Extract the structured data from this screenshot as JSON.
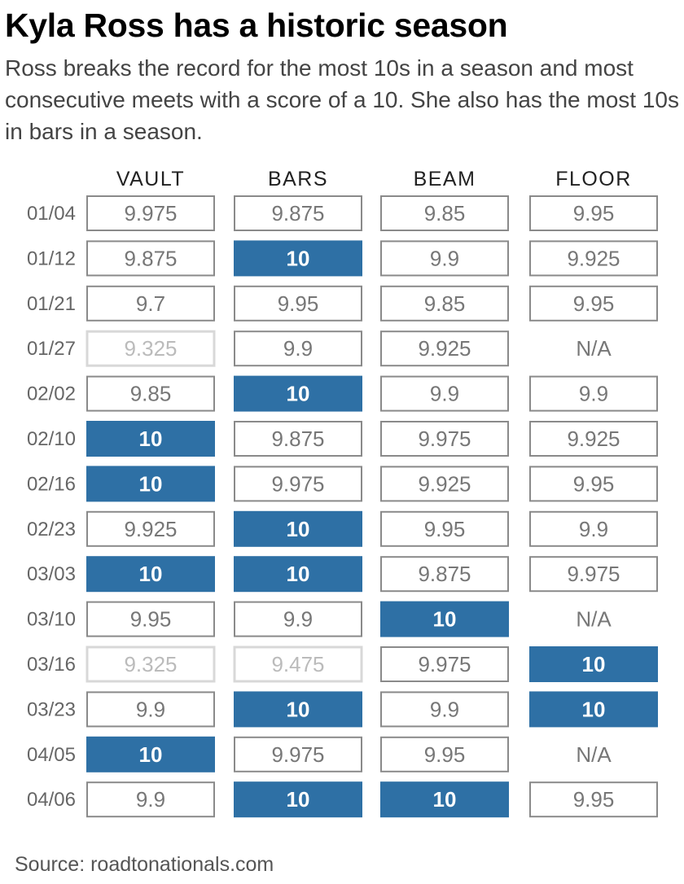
{
  "title": "Kyla Ross has a historic season",
  "subtitle": "Ross breaks the record for the most 10s in a season and most consecutive meets with a score of a 10. She also has the most 10s in bars in a season.",
  "source": "Source: roadtonationals.com",
  "colors": {
    "highlight_fill": "#2e70a5",
    "highlight_text": "#ffffff",
    "cell_border": "#8a8a8a",
    "cell_text": "#777777",
    "faded_border": "#d8d8d8",
    "faded_text": "#bbbbbb",
    "date_text": "#666666",
    "header_text": "#222222"
  },
  "chart_data": {
    "type": "table",
    "columns": [
      "VAULT",
      "BARS",
      "BEAM",
      "FLOOR"
    ],
    "rows": [
      {
        "date": "01/04",
        "scores": [
          "9.975",
          "9.875",
          "9.85",
          "9.95"
        ]
      },
      {
        "date": "01/12",
        "scores": [
          "9.875",
          "10",
          "9.9",
          "9.925"
        ]
      },
      {
        "date": "01/21",
        "scores": [
          "9.7",
          "9.95",
          "9.85",
          "9.95"
        ]
      },
      {
        "date": "01/27",
        "scores": [
          "9.325",
          "9.9",
          "9.925",
          "N/A"
        ]
      },
      {
        "date": "02/02",
        "scores": [
          "9.85",
          "10",
          "9.9",
          "9.9"
        ]
      },
      {
        "date": "02/10",
        "scores": [
          "10",
          "9.875",
          "9.975",
          "9.925"
        ]
      },
      {
        "date": "02/16",
        "scores": [
          "10",
          "9.975",
          "9.925",
          "9.95"
        ]
      },
      {
        "date": "02/23",
        "scores": [
          "9.925",
          "10",
          "9.95",
          "9.9"
        ]
      },
      {
        "date": "03/03",
        "scores": [
          "10",
          "10",
          "9.875",
          "9.975"
        ]
      },
      {
        "date": "03/10",
        "scores": [
          "9.95",
          "9.9",
          "10",
          "N/A"
        ]
      },
      {
        "date": "03/16",
        "scores": [
          "9.325",
          "9.475",
          "9.975",
          "10"
        ]
      },
      {
        "date": "03/23",
        "scores": [
          "9.9",
          "10",
          "9.9",
          "10"
        ]
      },
      {
        "date": "04/05",
        "scores": [
          "10",
          "9.975",
          "9.95",
          "N/A"
        ]
      },
      {
        "date": "04/06",
        "scores": [
          "9.9",
          "10",
          "10",
          "9.95"
        ]
      }
    ],
    "faded_cells": [
      {
        "date": "01/27",
        "column": "VAULT"
      },
      {
        "date": "03/16",
        "column": "VAULT"
      },
      {
        "date": "03/16",
        "column": "BARS"
      }
    ],
    "highlight_value": "10"
  }
}
